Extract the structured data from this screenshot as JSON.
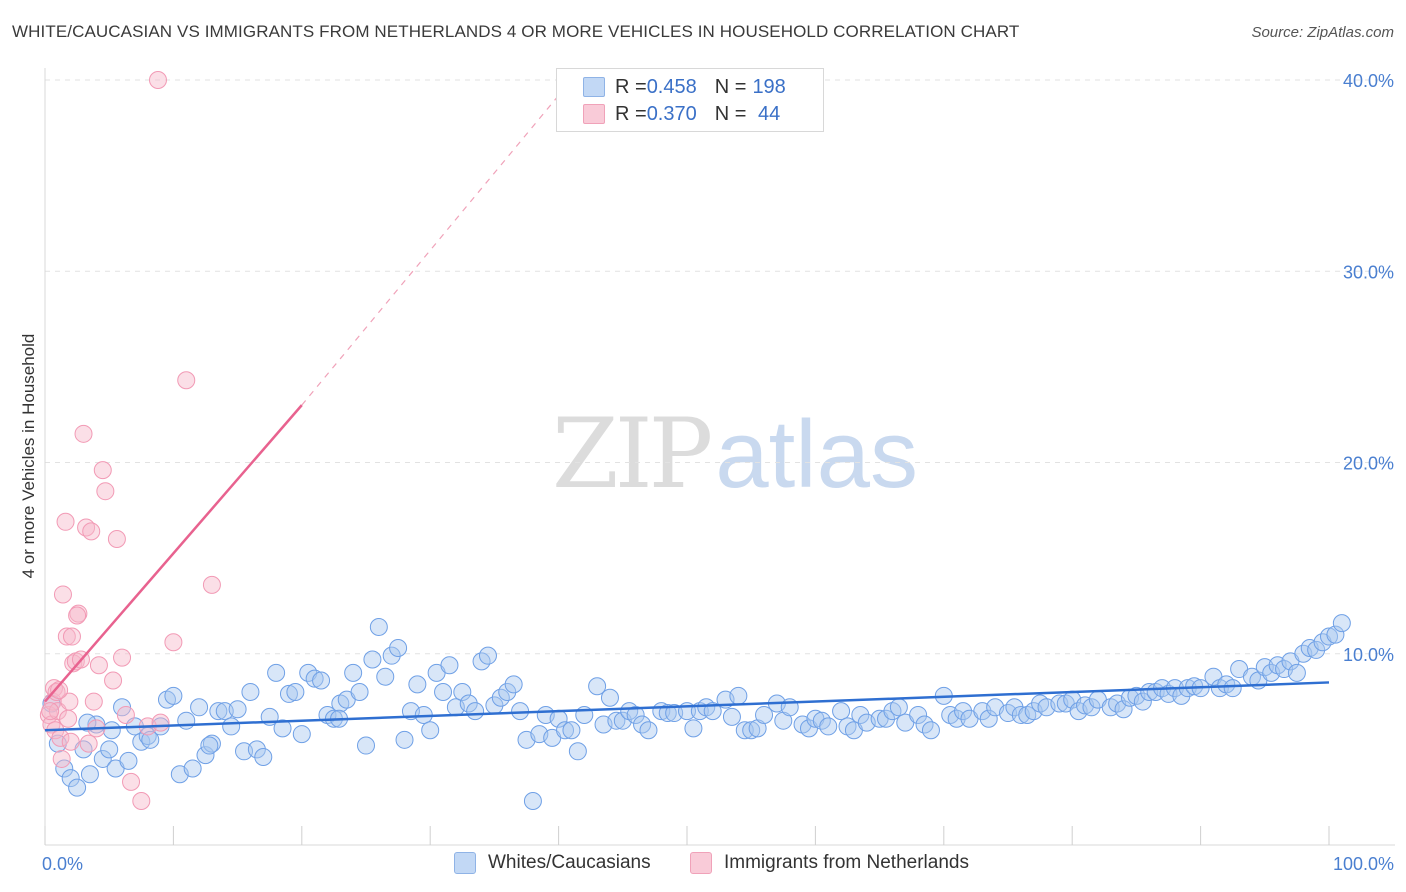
{
  "title": "WHITE/CAUCASIAN VS IMMIGRANTS FROM NETHERLANDS 4 OR MORE VEHICLES IN HOUSEHOLD CORRELATION CHART",
  "source": "Source: ZipAtlas.com",
  "watermark": {
    "zip": "ZIP",
    "atlas": "atlas"
  },
  "legend": {
    "rows": [
      {
        "r_label": "R = ",
        "r_value": "0.458",
        "n_label": "N = ",
        "n_value": "198",
        "color": "#a9c8f0"
      },
      {
        "r_label": "R = ",
        "r_value": "0.370",
        "n_label": "N = ",
        "n_value": " 44",
        "color": "#f7b8c9"
      }
    ]
  },
  "bottom_legend": [
    {
      "label": "Whites/Caucasians",
      "color": "#a9c8f0"
    },
    {
      "label": "Immigrants from Netherlands",
      "color": "#f7b8c9"
    }
  ],
  "chart_data": {
    "type": "scatter",
    "title": "WHITE/CAUCASIAN VS IMMIGRANTS FROM NETHERLANDS 4 OR MORE VEHICLES IN HOUSEHOLD CORRELATION CHART",
    "xlabel": "",
    "ylabel": "4 or more Vehicles in Household",
    "xlim": [
      0,
      100
    ],
    "ylim": [
      0,
      40
    ],
    "x_tick_labels": [
      "0.0%",
      "100.0%"
    ],
    "y_ticks": [
      10,
      20,
      30,
      40
    ],
    "y_tick_labels": [
      "10.0%",
      "20.0%",
      "30.0%",
      "40.0%"
    ],
    "grid": "horizontal dashed",
    "legend_position": "top-center",
    "series": [
      {
        "name": "Whites/Caucasians",
        "color": "#6fa0e6",
        "trend": {
          "x": [
            0,
            100
          ],
          "y": [
            6.0,
            8.5
          ]
        },
        "points": [
          [
            0.5,
            7.4
          ],
          [
            1,
            5.3
          ],
          [
            1.5,
            4
          ],
          [
            2,
            3.5
          ],
          [
            2.5,
            3.0
          ],
          [
            3,
            5.0
          ],
          [
            3.5,
            3.7
          ],
          [
            4,
            6.3
          ],
          [
            4.5,
            4.5
          ],
          [
            5,
            5.0
          ],
          [
            5.5,
            4.0
          ],
          [
            6,
            7.2
          ],
          [
            6.5,
            4.4
          ],
          [
            7,
            6.2
          ],
          [
            7.5,
            5.4
          ],
          [
            8,
            5.7
          ],
          [
            9,
            6.2
          ],
          [
            9.5,
            7.6
          ],
          [
            10,
            7.8
          ],
          [
            10.5,
            3.7
          ],
          [
            11,
            6.5
          ],
          [
            11.5,
            4.0
          ],
          [
            12,
            7.2
          ],
          [
            12.5,
            4.7
          ],
          [
            13,
            5.3
          ],
          [
            13.5,
            7.0
          ],
          [
            14,
            7.0
          ],
          [
            14.5,
            6.2
          ],
          [
            15,
            7.1
          ],
          [
            15.5,
            4.9
          ],
          [
            16,
            8.0
          ],
          [
            16.5,
            5.0
          ],
          [
            17,
            4.6
          ],
          [
            17.5,
            6.7
          ],
          [
            18,
            9.0
          ],
          [
            18.5,
            6.1
          ],
          [
            19,
            7.9
          ],
          [
            19.5,
            8.0
          ],
          [
            20,
            5.8
          ],
          [
            20.5,
            9.0
          ],
          [
            21,
            8.7
          ],
          [
            21.5,
            8.6
          ],
          [
            22,
            6.8
          ],
          [
            22.5,
            6.6
          ],
          [
            23,
            7.4
          ],
          [
            23.5,
            7.6
          ],
          [
            24,
            9.0
          ],
          [
            24.5,
            8.0
          ],
          [
            25,
            5.2
          ],
          [
            25.5,
            9.7
          ],
          [
            26,
            11.4
          ],
          [
            26.5,
            8.8
          ],
          [
            27,
            9.9
          ],
          [
            27.5,
            10.3
          ],
          [
            28,
            5.5
          ],
          [
            28.5,
            7.0
          ],
          [
            29,
            8.4
          ],
          [
            29.5,
            6.8
          ],
          [
            30,
            6.0
          ],
          [
            30.5,
            9.0
          ],
          [
            31,
            8.0
          ],
          [
            31.5,
            9.4
          ],
          [
            32,
            7.2
          ],
          [
            32.5,
            8.0
          ],
          [
            33,
            7.4
          ],
          [
            33.5,
            7.0
          ],
          [
            34,
            9.6
          ],
          [
            34.5,
            9.9
          ],
          [
            35,
            7.3
          ],
          [
            35.5,
            7.7
          ],
          [
            36,
            8.0
          ],
          [
            36.5,
            8.4
          ],
          [
            37,
            7.0
          ],
          [
            37.5,
            5.5
          ],
          [
            38,
            2.3
          ],
          [
            38.5,
            5.8
          ],
          [
            39,
            6.8
          ],
          [
            39.5,
            5.6
          ],
          [
            40,
            6.6
          ],
          [
            40.5,
            6.0
          ],
          [
            41,
            6.0
          ],
          [
            41.5,
            4.9
          ],
          [
            42,
            6.8
          ],
          [
            43,
            8.3
          ],
          [
            43.5,
            6.3
          ],
          [
            44,
            7.7
          ],
          [
            44.5,
            6.5
          ],
          [
            45,
            6.5
          ],
          [
            45.5,
            7.0
          ],
          [
            46,
            6.8
          ],
          [
            46.5,
            6.3
          ],
          [
            47,
            6.0
          ],
          [
            48,
            7.0
          ],
          [
            48.5,
            6.9
          ],
          [
            49,
            6.9
          ],
          [
            50,
            7.0
          ],
          [
            50.5,
            6.1
          ],
          [
            51,
            7.0
          ],
          [
            51.5,
            7.2
          ],
          [
            52,
            7.0
          ],
          [
            53,
            7.6
          ],
          [
            53.5,
            6.7
          ],
          [
            54,
            7.8
          ],
          [
            54.5,
            6.0
          ],
          [
            55,
            6.0
          ],
          [
            55.5,
            6.1
          ],
          [
            56,
            6.8
          ],
          [
            57,
            7.4
          ],
          [
            57.5,
            6.5
          ],
          [
            58,
            7.2
          ],
          [
            59,
            6.3
          ],
          [
            59.5,
            6.1
          ],
          [
            60,
            6.6
          ],
          [
            60.5,
            6.5
          ],
          [
            61,
            6.2
          ],
          [
            62,
            7.0
          ],
          [
            62.5,
            6.2
          ],
          [
            63,
            6.0
          ],
          [
            63.5,
            6.8
          ],
          [
            64,
            6.4
          ],
          [
            65,
            6.6
          ],
          [
            65.5,
            6.6
          ],
          [
            66,
            7.0
          ],
          [
            66.5,
            7.2
          ],
          [
            67,
            6.4
          ],
          [
            68,
            6.8
          ],
          [
            68.5,
            6.3
          ],
          [
            69,
            6.0
          ],
          [
            70,
            7.8
          ],
          [
            70.5,
            6.8
          ],
          [
            71,
            6.6
          ],
          [
            71.5,
            7.0
          ],
          [
            72,
            6.6
          ],
          [
            73,
            7.0
          ],
          [
            73.5,
            6.6
          ],
          [
            74,
            7.2
          ],
          [
            75,
            6.9
          ],
          [
            75.5,
            7.2
          ],
          [
            76,
            6.8
          ],
          [
            76.5,
            6.8
          ],
          [
            77,
            7.0
          ],
          [
            77.5,
            7.4
          ],
          [
            78,
            7.2
          ],
          [
            79,
            7.4
          ],
          [
            79.5,
            7.4
          ],
          [
            80,
            7.6
          ],
          [
            80.5,
            7.0
          ],
          [
            81,
            7.3
          ],
          [
            81.5,
            7.2
          ],
          [
            82,
            7.6
          ],
          [
            83,
            7.2
          ],
          [
            83.5,
            7.4
          ],
          [
            84,
            7.1
          ],
          [
            84.5,
            7.7
          ],
          [
            85,
            7.8
          ],
          [
            85.5,
            7.5
          ],
          [
            86,
            8.0
          ],
          [
            86.5,
            8.0
          ],
          [
            87,
            8.2
          ],
          [
            87.5,
            7.9
          ],
          [
            88,
            8.2
          ],
          [
            88.5,
            7.8
          ],
          [
            89,
            8.2
          ],
          [
            89.5,
            8.3
          ],
          [
            90,
            8.2
          ],
          [
            91,
            8.8
          ],
          [
            91.5,
            8.2
          ],
          [
            92,
            8.4
          ],
          [
            92.5,
            8.2
          ],
          [
            93,
            9.2
          ],
          [
            94,
            8.8
          ],
          [
            94.5,
            8.6
          ],
          [
            95,
            9.3
          ],
          [
            95.5,
            9.0
          ],
          [
            96,
            9.4
          ],
          [
            96.5,
            9.2
          ],
          [
            97,
            9.6
          ],
          [
            97.5,
            9.0
          ],
          [
            98,
            10.0
          ],
          [
            98.5,
            10.3
          ],
          [
            99,
            10.2
          ],
          [
            99.5,
            10.6
          ],
          [
            100,
            10.9
          ],
          [
            100.5,
            11.0
          ],
          [
            101,
            11.6
          ],
          [
            3.3,
            6.4
          ],
          [
            5.2,
            6.0
          ],
          [
            8.2,
            5.5
          ],
          [
            12.8,
            5.2
          ],
          [
            22.9,
            6.6
          ]
        ]
      },
      {
        "name": "Immigrants from Netherlands",
        "color": "#f29ab5",
        "trend": {
          "x": [
            0,
            20
          ],
          "y": [
            7.5,
            23.0
          ]
        },
        "trend_dashed": {
          "x": [
            20,
            41
          ],
          "y": [
            23.0,
            40.0
          ]
        },
        "points": [
          [
            0.3,
            6.8
          ],
          [
            0.5,
            6.3
          ],
          [
            0.6,
            7.5
          ],
          [
            0.7,
            8.2
          ],
          [
            0.8,
            6.0
          ],
          [
            0.9,
            8.0
          ],
          [
            1.0,
            7.0
          ],
          [
            1.2,
            5.6
          ],
          [
            1.3,
            4.5
          ],
          [
            1.4,
            13.1
          ],
          [
            1.6,
            16.9
          ],
          [
            1.7,
            10.9
          ],
          [
            1.8,
            6.6
          ],
          [
            1.9,
            7.5
          ],
          [
            2.0,
            5.4
          ],
          [
            2.2,
            9.5
          ],
          [
            2.4,
            9.6
          ],
          [
            2.6,
            12.1
          ],
          [
            2.8,
            9.7
          ],
          [
            3.0,
            21.5
          ],
          [
            3.2,
            16.6
          ],
          [
            3.4,
            5.3
          ],
          [
            3.6,
            16.4
          ],
          [
            3.8,
            7.5
          ],
          [
            4.0,
            6.1
          ],
          [
            4.2,
            9.4
          ],
          [
            4.5,
            19.6
          ],
          [
            4.7,
            18.5
          ],
          [
            5.3,
            8.6
          ],
          [
            5.6,
            16.0
          ],
          [
            6.0,
            9.8
          ],
          [
            6.3,
            6.8
          ],
          [
            6.7,
            3.3
          ],
          [
            7.5,
            2.3
          ],
          [
            8.0,
            6.2
          ],
          [
            9.0,
            6.4
          ],
          [
            10.0,
            10.6
          ],
          [
            11.0,
            24.3
          ],
          [
            13.0,
            13.6
          ],
          [
            2.1,
            10.9
          ],
          [
            1.1,
            8.1
          ],
          [
            0.4,
            7.0
          ],
          [
            8.8,
            40.0
          ],
          [
            2.5,
            12.0
          ]
        ]
      }
    ]
  }
}
